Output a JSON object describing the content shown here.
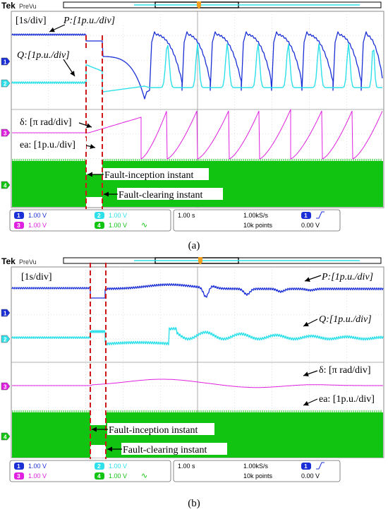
{
  "header": {
    "brand": "Tek",
    "mode": "PreVu"
  },
  "channels": [
    {
      "id": "1",
      "color": "#1a2fd6"
    },
    {
      "id": "2",
      "color": "#2ee0ea"
    },
    {
      "id": "3",
      "color": "#e020e0"
    },
    {
      "id": "4",
      "color": "#11c411"
    }
  ],
  "chart_data": [
    {
      "type": "line",
      "panel": "(a)",
      "annotations": {
        "time_scale": "[1s/div]",
        "P": "P:[1p.u./div]",
        "Q": "Q:[1p.u./div]",
        "delta": "δ: [π rad/div]",
        "ea": "ea: [1p.u./div]",
        "fault_inception": "Fault-inception instant",
        "fault_clearing": "Fault-clearing instant"
      },
      "series": [
        {
          "channel": "1",
          "quantity": "P",
          "behavior": "pole slipping oscillation after fault clearing"
        },
        {
          "channel": "2",
          "quantity": "Q",
          "behavior": "periodic spikes after fault clearing"
        },
        {
          "channel": "3",
          "quantity": "δ",
          "behavior": "sawtooth, continuously increasing (loss of synchronism)"
        },
        {
          "channel": "4",
          "quantity": "ea",
          "behavior": "dense sinusoid, reduced during fault"
        }
      ],
      "status": {
        "ch1": "1.00 V",
        "ch2": "1.00 V",
        "ch3": "1.00 V",
        "ch4": "1.00 V",
        "timebase": "1.00 s",
        "sample_rate": "1.00kS/s",
        "record": "10k points",
        "trig_ch": "1",
        "trig_level": "0.00 V"
      }
    },
    {
      "type": "line",
      "panel": "(b)",
      "annotations": {
        "time_scale": "[1s/div]",
        "P": "P:[1p.u./div]",
        "Q": "Q:[1p.u./div]",
        "delta": "δ: [π rad/div]",
        "ea": "ea: [1p.u./div]",
        "fault_inception": "Fault-inception instant",
        "fault_clearing": "Fault-clearing instant"
      },
      "series": [
        {
          "channel": "1",
          "quantity": "P",
          "behavior": "damped oscillation, stable"
        },
        {
          "channel": "2",
          "quantity": "Q",
          "behavior": "damped oscillation, stable"
        },
        {
          "channel": "3",
          "quantity": "δ",
          "behavior": "small hump then settles"
        },
        {
          "channel": "4",
          "quantity": "ea",
          "behavior": "dense sinusoid, reduced during fault"
        }
      ],
      "status": {
        "ch1": "1.00 V",
        "ch2": "1.00 V",
        "ch3": "1.00 V",
        "ch4": "1.00 V",
        "timebase": "1.00 s",
        "sample_rate": "1.00kS/s",
        "record": "10k points",
        "trig_ch": "1",
        "trig_level": "0.00 V"
      }
    }
  ],
  "captions": {
    "a": "(a)",
    "b": "(b)"
  }
}
